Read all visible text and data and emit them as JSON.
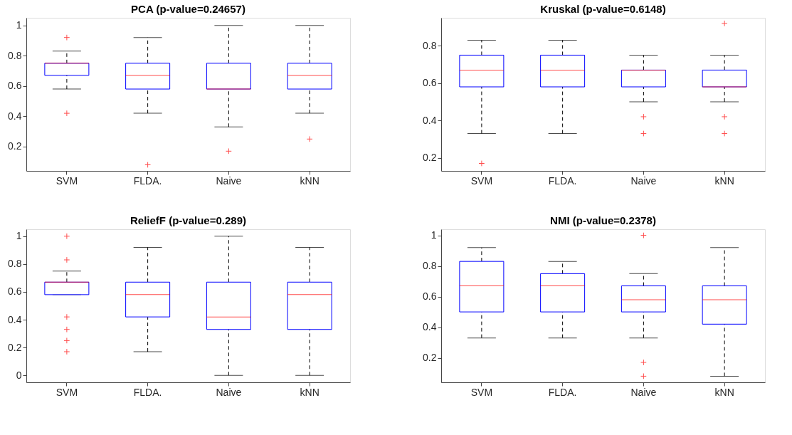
{
  "chart_data": [
    {
      "type": "box",
      "title": "PCA (p-value=0.24657)",
      "categories": [
        "SVM",
        "FLDA.",
        "Naive",
        "kNN"
      ],
      "ylim": [
        0.04,
        1.05
      ],
      "yticks": [
        0.2,
        0.4,
        0.6,
        0.8,
        1
      ],
      "grid": false,
      "boxes": [
        {
          "low": 0.58,
          "q1": 0.67,
          "median": 0.75,
          "q3": 0.75,
          "high": 0.83,
          "outliers": [
            0.92,
            0.42
          ]
        },
        {
          "low": 0.42,
          "q1": 0.58,
          "median": 0.67,
          "q3": 0.75,
          "high": 0.92,
          "outliers": [
            0.08
          ]
        },
        {
          "low": 0.33,
          "q1": 0.58,
          "median": 0.58,
          "q3": 0.75,
          "high": 1,
          "outliers": [
            0.17
          ]
        },
        {
          "low": 0.42,
          "q1": 0.58,
          "median": 0.67,
          "q3": 0.75,
          "high": 1,
          "outliers": [
            0.25
          ]
        }
      ]
    },
    {
      "type": "box",
      "title": "Kruskal (p-value=0.6148)",
      "categories": [
        "SVM",
        "FLDA.",
        "Naive",
        "kNN"
      ],
      "ylim": [
        0.13,
        0.95
      ],
      "yticks": [
        0.2,
        0.4,
        0.6,
        0.8
      ],
      "grid": false,
      "boxes": [
        {
          "low": 0.33,
          "q1": 0.58,
          "median": 0.67,
          "q3": 0.75,
          "high": 0.83,
          "outliers": [
            0.17
          ]
        },
        {
          "low": 0.33,
          "q1": 0.58,
          "median": 0.67,
          "q3": 0.75,
          "high": 0.83
        },
        {
          "low": 0.5,
          "q1": 0.58,
          "median": 0.67,
          "q3": 0.67,
          "high": 0.75,
          "outliers": [
            0.42,
            0.33
          ]
        },
        {
          "low": 0.5,
          "q1": 0.58,
          "median": 0.58,
          "q3": 0.67,
          "high": 0.75,
          "outliers": [
            0.92,
            0.42,
            0.33
          ]
        }
      ]
    },
    {
      "type": "box",
      "title": "ReliefF (p-value=0.289)",
      "categories": [
        "SVM",
        "FLDA.",
        "Naive",
        "kNN"
      ],
      "ylim": [
        -0.05,
        1.05
      ],
      "yticks": [
        0,
        0.2,
        0.4,
        0.6,
        0.8,
        1
      ],
      "grid": false,
      "boxes": [
        {
          "low": 0.58,
          "q1": 0.58,
          "median": 0.67,
          "q3": 0.67,
          "high": 0.75,
          "outliers": [
            1,
            0.83,
            0.42,
            0.33,
            0.25,
            0.17
          ]
        },
        {
          "low": 0.17,
          "q1": 0.42,
          "median": 0.58,
          "q3": 0.67,
          "high": 0.92
        },
        {
          "low": 0,
          "q1": 0.33,
          "median": 0.42,
          "q3": 0.67,
          "high": 1
        },
        {
          "low": 0,
          "q1": 0.33,
          "median": 0.58,
          "q3": 0.67,
          "high": 0.92
        }
      ]
    },
    {
      "type": "box",
      "title": "NMI (p-value=0.2378)",
      "categories": [
        "SVM",
        "FLDA.",
        "Naive",
        "kNN"
      ],
      "ylim": [
        0.04,
        1.04
      ],
      "yticks": [
        0.2,
        0.4,
        0.6,
        0.8,
        1
      ],
      "grid": false,
      "boxes": [
        {
          "low": 0.33,
          "q1": 0.5,
          "median": 0.67,
          "q3": 0.83,
          "high": 0.92
        },
        {
          "low": 0.33,
          "q1": 0.5,
          "median": 0.67,
          "q3": 0.75,
          "high": 0.83
        },
        {
          "low": 0.33,
          "q1": 0.5,
          "median": 0.58,
          "q3": 0.67,
          "high": 0.75,
          "outliers": [
            1,
            0.17,
            0.08
          ]
        },
        {
          "low": 0.08,
          "q1": 0.42,
          "median": 0.58,
          "q3": 0.67,
          "high": 0.92
        }
      ]
    }
  ]
}
